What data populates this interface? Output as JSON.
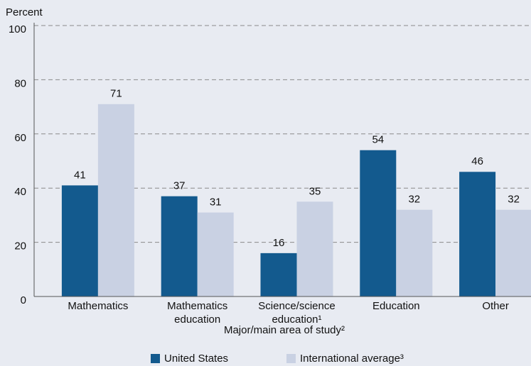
{
  "chart_data": {
    "type": "bar",
    "y_label": "Percent",
    "x_label": "Major/main area of study²",
    "categories": [
      "Mathematics",
      "Mathematics education",
      "Science/science education¹",
      "Education",
      "Other"
    ],
    "series": [
      {
        "name": "United States",
        "color": "#135a8e",
        "values": [
          41,
          37,
          16,
          54,
          46
        ]
      },
      {
        "name": "International average³",
        "color": "#c9d1e3",
        "values": [
          71,
          31,
          35,
          32,
          32
        ]
      }
    ],
    "ylim": [
      0,
      100
    ],
    "yticks": [
      0,
      20,
      40,
      60,
      80,
      100
    ],
    "grid": true
  }
}
